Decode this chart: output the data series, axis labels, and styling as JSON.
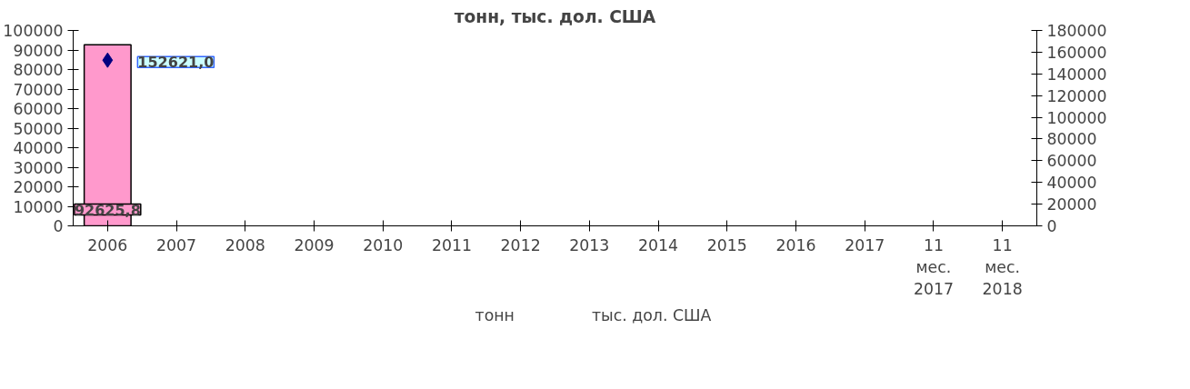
{
  "chart_data": {
    "type": "bar",
    "title": "тонн, тыс. дол. США",
    "categories": [
      "2006",
      "2007",
      "2008",
      "2009",
      "2010",
      "2011",
      "2012",
      "2013",
      "2014",
      "2015",
      "2016",
      "2017",
      "11 мес. 2017",
      "11 мес. 2018"
    ],
    "series": [
      {
        "name": "тонн",
        "color": "#ff99cc",
        "values": [
          92625.8,
          null,
          null,
          null,
          null,
          null,
          null,
          null,
          null,
          null,
          null,
          null,
          null,
          null
        ],
        "value_labels": [
          "92625,8",
          null,
          null,
          null,
          null,
          null,
          null,
          null,
          null,
          null,
          null,
          null,
          null,
          null
        ]
      },
      {
        "name": "тыс. дол. США",
        "type": "line",
        "axis": "y2",
        "color": "#000080",
        "marker": "diamond",
        "values": [
          152621.0,
          null,
          null,
          null,
          null,
          null,
          null,
          null,
          null,
          null,
          null,
          null,
          null,
          null
        ],
        "value_labels": [
          "152621,0",
          null,
          null,
          null,
          null,
          null,
          null,
          null,
          null,
          null,
          null,
          null,
          null,
          null
        ]
      }
    ],
    "ylim": [
      0,
      100000
    ],
    "yticks": [
      0,
      10000,
      20000,
      30000,
      40000,
      50000,
      60000,
      70000,
      80000,
      90000,
      100000
    ],
    "y2lim": [
      0,
      180000
    ],
    "y2ticks": [
      0,
      20000,
      40000,
      60000,
      80000,
      100000,
      120000,
      140000,
      160000,
      180000
    ],
    "grid": false,
    "legend": "bottom"
  }
}
